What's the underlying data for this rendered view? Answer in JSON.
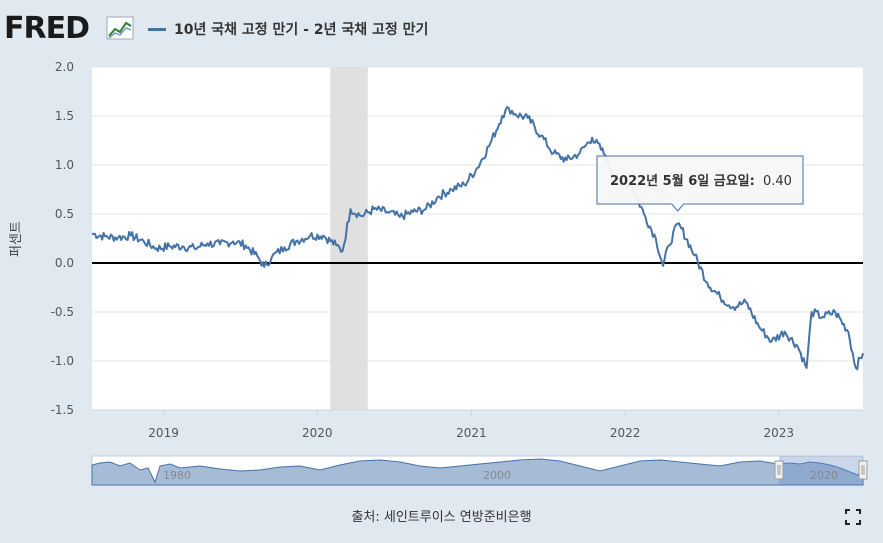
{
  "header": {
    "logo_text": "FRED",
    "logo_icon": "chart-line-icon",
    "legend_label": "10년 국채 고정 만기 - 2년 국채 고정 만기"
  },
  "footer": {
    "source": "출처: 세인트루이스 연방준비은행",
    "fullscreen_icon": "fullscreen-icon"
  },
  "tooltip": {
    "date": "2022년 5월 6일 금요일:",
    "value": "0.40"
  },
  "colors": {
    "series": "#4572a7",
    "recession": "#e0e0e0",
    "zero_line": "#000000"
  },
  "chart_data": {
    "type": "line",
    "title": "",
    "ylabel": "퍼센트",
    "ylim": [
      -1.5,
      2.0
    ],
    "yticks": [
      "2.0",
      "1.5",
      "1.0",
      "0.5",
      "0.0",
      "-0.5",
      "-1.0",
      "-1.5"
    ],
    "xlim": [
      "2018-07-15",
      "2023-07-20"
    ],
    "xticks": [
      {
        "date": "2019-01-01",
        "label": "2019"
      },
      {
        "date": "2020-01-01",
        "label": "2020"
      },
      {
        "date": "2021-01-01",
        "label": "2021"
      },
      {
        "date": "2022-01-01",
        "label": "2022"
      },
      {
        "date": "2023-01-01",
        "label": "2023"
      }
    ],
    "recession": {
      "start": "2020-02-01",
      "end": "2020-04-30"
    },
    "highlight": {
      "date": "2022-05-06",
      "value": 0.4
    },
    "series": [
      {
        "name": "10년 국채 고정 만기 - 2년 국채 고정 만기",
        "x": [
          "2018-07-15",
          "2018-08-15",
          "2018-09-15",
          "2018-10-15",
          "2018-11-15",
          "2018-12-15",
          "2019-01-15",
          "2019-02-15",
          "2019-03-15",
          "2019-04-15",
          "2019-05-15",
          "2019-06-15",
          "2019-07-15",
          "2019-08-15",
          "2019-08-28",
          "2019-09-15",
          "2019-10-15",
          "2019-11-15",
          "2019-12-15",
          "2020-01-15",
          "2020-02-15",
          "2020-03-01",
          "2020-03-20",
          "2020-04-15",
          "2020-05-15",
          "2020-06-15",
          "2020-07-15",
          "2020-08-15",
          "2020-09-15",
          "2020-10-15",
          "2020-11-15",
          "2020-12-15",
          "2021-01-15",
          "2021-02-15",
          "2021-03-15",
          "2021-03-31",
          "2021-04-15",
          "2021-05-15",
          "2021-06-15",
          "2021-07-15",
          "2021-08-15",
          "2021-09-15",
          "2021-10-15",
          "2021-11-15",
          "2021-12-15",
          "2022-01-15",
          "2022-02-15",
          "2022-03-15",
          "2022-04-01",
          "2022-04-15",
          "2022-05-06",
          "2022-05-15",
          "2022-06-15",
          "2022-07-15",
          "2022-08-15",
          "2022-09-15",
          "2022-10-15",
          "2022-11-15",
          "2022-12-15",
          "2023-01-15",
          "2023-02-15",
          "2023-03-08",
          "2023-03-20",
          "2023-04-15",
          "2023-05-15",
          "2023-06-15",
          "2023-07-03",
          "2023-07-20"
        ],
        "values": [
          0.3,
          0.27,
          0.26,
          0.28,
          0.22,
          0.15,
          0.17,
          0.17,
          0.15,
          0.2,
          0.19,
          0.22,
          0.18,
          0.05,
          -0.04,
          0.06,
          0.16,
          0.23,
          0.28,
          0.28,
          0.18,
          0.12,
          0.55,
          0.48,
          0.55,
          0.52,
          0.47,
          0.52,
          0.55,
          0.68,
          0.75,
          0.8,
          0.97,
          1.22,
          1.5,
          1.58,
          1.52,
          1.48,
          1.3,
          1.12,
          1.05,
          1.12,
          1.28,
          1.1,
          0.8,
          0.8,
          0.5,
          0.25,
          -0.03,
          0.18,
          0.4,
          0.35,
          0.08,
          -0.2,
          -0.35,
          -0.45,
          -0.4,
          -0.65,
          -0.8,
          -0.7,
          -0.85,
          -1.07,
          -0.5,
          -0.55,
          -0.5,
          -0.7,
          -1.07,
          -0.92
        ]
      }
    ]
  },
  "navigator": {
    "labels": [
      "1980",
      "2000",
      "2020"
    ]
  }
}
